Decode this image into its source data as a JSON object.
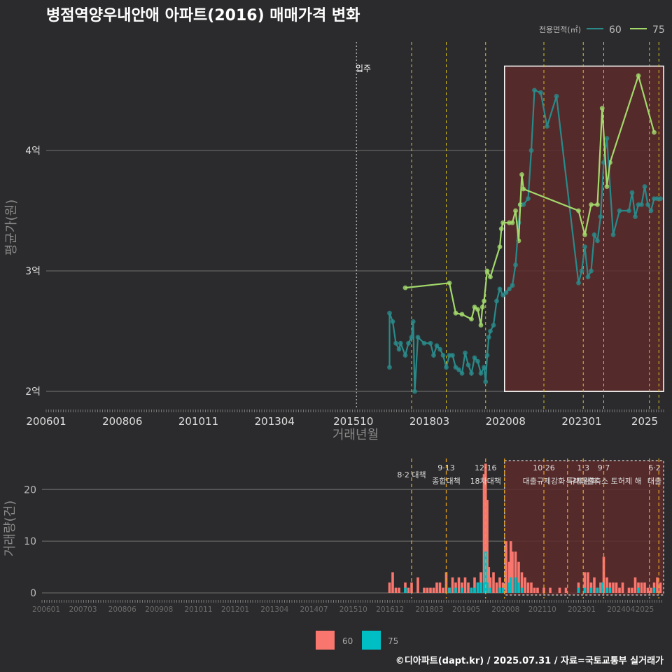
{
  "title": "병점역양우내안애 아파트(2016) 매매가격 변화",
  "footer": "©디아파트(dapt.kr) / 2025.07.31 / 자료=국토교통부 실거래가",
  "colors": {
    "bg": "#2b2b2d",
    "grid": "#5a5a5a",
    "line60": "#2a8a8a",
    "line75": "#a3d96b",
    "policy": "#d7c21a",
    "highlight": "#5c2a2c",
    "bar60": "#f8766d",
    "bar75": "#00bfc4"
  },
  "chart_data": [
    {
      "type": "line",
      "title": "병점역양우내안애 아파트(2016) 매매가격 변화",
      "xlabel": "거래년월",
      "ylabel": "평균가(원)",
      "x_ticks": [
        "200601",
        "200806",
        "201011",
        "201304",
        "201510",
        "201803",
        "202008",
        "202301",
        "2025"
      ],
      "y_ticks": [
        {
          "value": 2,
          "label": "2억"
        },
        {
          "value": 3,
          "label": "3억"
        },
        {
          "value": 4,
          "label": "4억"
        }
      ],
      "x_range": [
        2006.0,
        2025.6
      ],
      "ylim": [
        1.85,
        4.9
      ],
      "legend": {
        "title": "전용면적(㎡)",
        "position": "top-right",
        "entries": [
          "60",
          "75"
        ]
      },
      "annotation": {
        "label": "입주",
        "x": 2015.85
      },
      "policy_lines_x": [
        2017.6,
        2018.7,
        2019.95,
        2021.8,
        2023.05,
        2023.7,
        2025.15,
        2025.45
      ],
      "highlight_range": {
        "x": [
          2020.55,
          2025.6
        ],
        "y": [
          2.0,
          4.7
        ]
      },
      "series": [
        {
          "name": "60",
          "points": [
            [
              2016.9,
              2.2
            ],
            [
              2016.9,
              2.65
            ],
            [
              2017.0,
              2.58
            ],
            [
              2017.1,
              2.4
            ],
            [
              2017.2,
              2.35
            ],
            [
              2017.25,
              2.4
            ],
            [
              2017.4,
              2.3
            ],
            [
              2017.5,
              2.4
            ],
            [
              2017.6,
              2.45
            ],
            [
              2017.65,
              2.58
            ],
            [
              2017.7,
              2.0
            ],
            [
              2017.8,
              2.45
            ],
            [
              2018.0,
              2.4
            ],
            [
              2018.2,
              2.4
            ],
            [
              2018.3,
              2.3
            ],
            [
              2018.4,
              2.38
            ],
            [
              2018.5,
              2.35
            ],
            [
              2018.6,
              2.3
            ],
            [
              2018.7,
              2.2
            ],
            [
              2018.8,
              2.3
            ],
            [
              2018.9,
              2.3
            ],
            [
              2019.0,
              2.2
            ],
            [
              2019.1,
              2.18
            ],
            [
              2019.2,
              2.15
            ],
            [
              2019.3,
              2.32
            ],
            [
              2019.4,
              2.22
            ],
            [
              2019.5,
              2.15
            ],
            [
              2019.6,
              2.28
            ],
            [
              2019.7,
              2.25
            ],
            [
              2019.8,
              2.15
            ],
            [
              2019.9,
              2.2
            ],
            [
              2019.95,
              2.08
            ],
            [
              2020.0,
              2.3
            ],
            [
              2020.05,
              2.45
            ],
            [
              2020.1,
              2.5
            ],
            [
              2020.2,
              2.55
            ],
            [
              2020.3,
              2.75
            ],
            [
              2020.4,
              2.85
            ],
            [
              2020.5,
              2.8
            ],
            [
              2020.6,
              2.82
            ],
            [
              2020.7,
              2.85
            ],
            [
              2020.8,
              2.88
            ],
            [
              2020.9,
              3.05
            ],
            [
              2021.0,
              3.4
            ],
            [
              2021.05,
              3.55
            ],
            [
              2021.15,
              3.55
            ],
            [
              2021.3,
              3.6
            ],
            [
              2021.4,
              4.0
            ],
            [
              2021.5,
              4.5
            ],
            [
              2021.7,
              4.48
            ],
            [
              2021.9,
              4.2
            ],
            [
              2022.2,
              4.45
            ],
            [
              2022.9,
              2.9
            ],
            [
              2023.0,
              3.0
            ],
            [
              2023.1,
              3.2
            ],
            [
              2023.2,
              2.95
            ],
            [
              2023.3,
              3.0
            ],
            [
              2023.4,
              3.3
            ],
            [
              2023.5,
              3.25
            ],
            [
              2023.6,
              3.45
            ],
            [
              2023.7,
              3.9
            ],
            [
              2023.8,
              4.1
            ],
            [
              2024.0,
              3.3
            ],
            [
              2024.2,
              3.5
            ],
            [
              2024.5,
              3.5
            ],
            [
              2024.6,
              3.65
            ],
            [
              2024.7,
              3.45
            ],
            [
              2024.8,
              3.55
            ],
            [
              2024.9,
              3.55
            ],
            [
              2025.0,
              3.7
            ],
            [
              2025.1,
              3.55
            ],
            [
              2025.2,
              3.5
            ],
            [
              2025.3,
              3.6
            ],
            [
              2025.4,
              3.6
            ],
            [
              2025.5,
              3.6
            ]
          ]
        },
        {
          "name": "75",
          "points": [
            [
              2017.4,
              2.86
            ],
            [
              2018.8,
              2.9
            ],
            [
              2019.0,
              2.65
            ],
            [
              2019.2,
              2.64
            ],
            [
              2019.5,
              2.6
            ],
            [
              2019.6,
              2.7
            ],
            [
              2019.7,
              2.68
            ],
            [
              2019.8,
              2.55
            ],
            [
              2019.85,
              2.7
            ],
            [
              2019.9,
              2.75
            ],
            [
              2020.0,
              3.0
            ],
            [
              2020.1,
              2.95
            ],
            [
              2020.4,
              3.2
            ],
            [
              2020.45,
              3.35
            ],
            [
              2020.5,
              3.4
            ],
            [
              2020.7,
              3.4
            ],
            [
              2020.8,
              3.4
            ],
            [
              2020.9,
              3.5
            ],
            [
              2021.0,
              3.25
            ],
            [
              2021.05,
              3.55
            ],
            [
              2021.1,
              3.8
            ],
            [
              2021.15,
              3.68
            ],
            [
              2022.9,
              3.5
            ],
            [
              2023.1,
              3.3
            ],
            [
              2023.3,
              3.55
            ],
            [
              2023.5,
              3.55
            ],
            [
              2023.65,
              4.35
            ],
            [
              2023.8,
              3.7
            ],
            [
              2023.9,
              3.9
            ],
            [
              2024.8,
              4.62
            ],
            [
              2025.3,
              4.15
            ]
          ]
        }
      ]
    },
    {
      "type": "bar",
      "ylabel": "거래량(건)",
      "x_ticks": [
        "200601",
        "200703",
        "200806",
        "200908",
        "201011",
        "201201",
        "201304",
        "201407",
        "201510",
        "201612",
        "201803",
        "201905",
        "202008",
        "202110",
        "202301",
        "202404",
        "2025"
      ],
      "y_ticks": [
        0,
        10,
        20
      ],
      "x_range": [
        2006.0,
        2025.6
      ],
      "ylim": [
        0,
        26
      ],
      "legend": {
        "position": "bottom",
        "entries": [
          "60",
          "75"
        ]
      },
      "policy_lines_x": [
        2017.6,
        2018.7,
        2019.95,
        2020.55,
        2021.8,
        2022.55,
        2023.05,
        2023.7,
        2025.15,
        2025.45
      ],
      "policy_labels": [
        {
          "x": 2017.6,
          "date": "",
          "text": "8·2 대책"
        },
        {
          "x": 2018.7,
          "date": "9·13",
          "text": "종합대책"
        },
        {
          "x": 2019.95,
          "date": "12·16",
          "text": "18차대책"
        },
        {
          "x": 2021.8,
          "date": "10·26",
          "text": "대출규제강화"
        },
        {
          "x": 2023.05,
          "date": "1·3",
          "text": "규제완화"
        },
        {
          "x": 2023.7,
          "date": "9·7",
          "text": "특례대출축소 토허제 해"
        },
        {
          "x": 2025.45,
          "date": "6·2",
          "text": "대출"
        }
      ],
      "highlight_range": {
        "x": [
          2020.55,
          2025.6
        ],
        "y": [
          0,
          26
        ]
      },
      "bars60": [
        [
          2016.9,
          2
        ],
        [
          2017.0,
          4
        ],
        [
          2017.1,
          1
        ],
        [
          2017.2,
          1
        ],
        [
          2017.4,
          2
        ],
        [
          2017.5,
          1
        ],
        [
          2017.6,
          2
        ],
        [
          2017.8,
          3
        ],
        [
          2018.0,
          1
        ],
        [
          2018.1,
          1
        ],
        [
          2018.2,
          1
        ],
        [
          2018.3,
          1
        ],
        [
          2018.4,
          2
        ],
        [
          2018.5,
          2
        ],
        [
          2018.6,
          1
        ],
        [
          2018.7,
          4
        ],
        [
          2018.8,
          1
        ],
        [
          2018.9,
          3
        ],
        [
          2019.0,
          2
        ],
        [
          2019.1,
          3
        ],
        [
          2019.2,
          2
        ],
        [
          2019.3,
          3
        ],
        [
          2019.4,
          2
        ],
        [
          2019.5,
          1
        ],
        [
          2019.6,
          3
        ],
        [
          2019.7,
          2
        ],
        [
          2019.8,
          4
        ],
        [
          2019.9,
          23
        ],
        [
          2019.95,
          25
        ],
        [
          2020.0,
          18
        ],
        [
          2020.05,
          5
        ],
        [
          2020.1,
          3
        ],
        [
          2020.2,
          4
        ],
        [
          2020.3,
          2
        ],
        [
          2020.4,
          3
        ],
        [
          2020.5,
          2
        ],
        [
          2020.6,
          10
        ],
        [
          2020.7,
          6
        ],
        [
          2020.75,
          10
        ],
        [
          2020.8,
          8
        ],
        [
          2020.9,
          8
        ],
        [
          2021.0,
          6
        ],
        [
          2021.1,
          4
        ],
        [
          2021.2,
          3
        ],
        [
          2021.3,
          2
        ],
        [
          2021.4,
          2
        ],
        [
          2021.5,
          1
        ],
        [
          2021.6,
          1
        ],
        [
          2021.8,
          1
        ],
        [
          2022.0,
          1
        ],
        [
          2022.3,
          1
        ],
        [
          2022.5,
          1
        ],
        [
          2022.9,
          2
        ],
        [
          2023.1,
          4
        ],
        [
          2023.2,
          4
        ],
        [
          2023.3,
          2
        ],
        [
          2023.4,
          3
        ],
        [
          2023.5,
          1
        ],
        [
          2023.6,
          2
        ],
        [
          2023.7,
          7
        ],
        [
          2023.8,
          3
        ],
        [
          2023.9,
          2
        ],
        [
          2024.0,
          2
        ],
        [
          2024.1,
          2
        ],
        [
          2024.2,
          1
        ],
        [
          2024.3,
          2
        ],
        [
          2024.5,
          1
        ],
        [
          2024.6,
          1
        ],
        [
          2024.7,
          3
        ],
        [
          2024.8,
          2
        ],
        [
          2024.9,
          2
        ],
        [
          2025.0,
          2
        ],
        [
          2025.1,
          1
        ],
        [
          2025.2,
          1
        ],
        [
          2025.3,
          2
        ],
        [
          2025.4,
          3
        ],
        [
          2025.5,
          2
        ]
      ],
      "bars75": [
        [
          2017.4,
          1
        ],
        [
          2018.8,
          1
        ],
        [
          2019.0,
          1
        ],
        [
          2019.2,
          1
        ],
        [
          2019.5,
          1
        ],
        [
          2019.6,
          1
        ],
        [
          2019.7,
          2
        ],
        [
          2019.8,
          2
        ],
        [
          2019.9,
          2
        ],
        [
          2019.95,
          8
        ],
        [
          2020.0,
          2
        ],
        [
          2020.1,
          1
        ],
        [
          2020.4,
          1
        ],
        [
          2020.5,
          1
        ],
        [
          2020.7,
          2
        ],
        [
          2020.75,
          3
        ],
        [
          2020.9,
          3
        ],
        [
          2021.0,
          2
        ],
        [
          2021.1,
          1
        ],
        [
          2022.9,
          1
        ],
        [
          2023.1,
          1
        ],
        [
          2023.3,
          1
        ],
        [
          2023.5,
          1
        ],
        [
          2023.65,
          2
        ],
        [
          2023.8,
          1
        ],
        [
          2023.9,
          1
        ],
        [
          2024.8,
          1
        ],
        [
          2025.3,
          1
        ]
      ]
    }
  ]
}
